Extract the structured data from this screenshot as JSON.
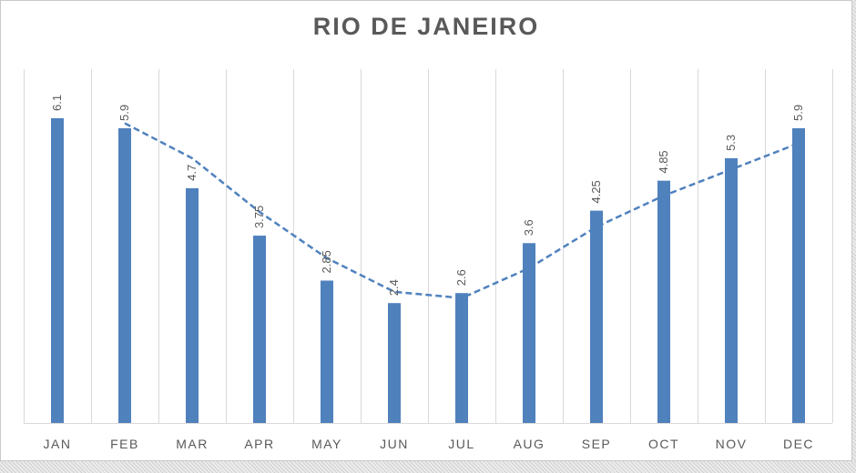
{
  "chart_data": {
    "type": "bar",
    "title": "RIO DE JANEIRO",
    "categories": [
      "JAN",
      "FEB",
      "MAR",
      "APR",
      "MAY",
      "JUN",
      "JUL",
      "AUG",
      "SEP",
      "OCT",
      "NOV",
      "DEC"
    ],
    "values": [
      6.1,
      5.9,
      4.7,
      3.75,
      2.85,
      2.4,
      2.6,
      3.6,
      4.25,
      4.85,
      5.3,
      5.9
    ],
    "data_labels": [
      "6.1",
      "5.9",
      "4.7",
      "3.75",
      "2.85",
      "2.4",
      "2.6",
      "3.6",
      "4.25",
      "4.85",
      "5.3",
      "5.9"
    ],
    "trendline": {
      "style": "dashed",
      "type": "moving-average",
      "period": 2,
      "from_category": "FEB"
    },
    "ylim": [
      0,
      6.1
    ],
    "grid": "vertical",
    "legend": "none",
    "colors": {
      "bar": "#4f81bd",
      "trendline": "#4f81bd",
      "text": "#595959",
      "grid": "#d9d9d9"
    }
  }
}
